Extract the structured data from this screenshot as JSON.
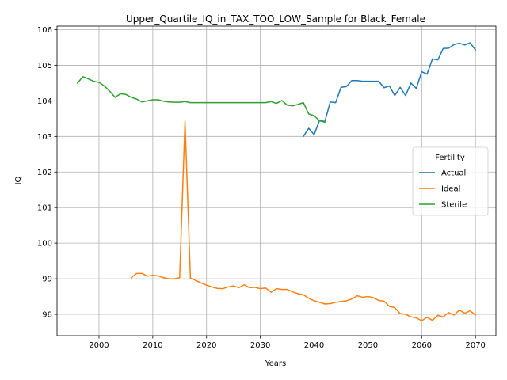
{
  "chart_data": {
    "type": "line",
    "title": "Upper_Quartile_IQ_in_TAX_TOO_LOW_Sample for Black_Female",
    "xlabel": "Years",
    "ylabel": "IQ",
    "xlim": [
      1992.2,
      2073.8
    ],
    "ylim": [
      97.4,
      106.1
    ],
    "xticks": [
      2000,
      2010,
      2020,
      2030,
      2040,
      2050,
      2060,
      2070
    ],
    "yticks": [
      98,
      99,
      100,
      101,
      102,
      103,
      104,
      105,
      106
    ],
    "grid": true,
    "legend": {
      "title": "Fertility",
      "placement": "center-right"
    },
    "series": [
      {
        "name": "Actual",
        "color": "#1f77b4",
        "x": [
          2038,
          2039,
          2040,
          2041,
          2042,
          2043,
          2044,
          2045,
          2046,
          2047,
          2048,
          2049,
          2050,
          2051,
          2052,
          2053,
          2054,
          2055,
          2056,
          2057,
          2058,
          2059,
          2060,
          2061,
          2062,
          2063,
          2064,
          2065,
          2066,
          2067,
          2068,
          2069,
          2070
        ],
        "y": [
          103.0,
          103.23,
          103.05,
          103.45,
          103.42,
          103.97,
          103.95,
          104.38,
          104.4,
          104.57,
          104.57,
          104.55,
          104.55,
          104.55,
          104.55,
          104.37,
          104.42,
          104.15,
          104.38,
          104.15,
          104.5,
          104.35,
          104.82,
          104.75,
          105.18,
          105.15,
          105.47,
          105.48,
          105.58,
          105.62,
          105.57,
          105.63,
          105.43
        ]
      },
      {
        "name": "Ideal",
        "color": "#ff7f0e",
        "x": [
          2006,
          2007,
          2008,
          2009,
          2010,
          2011,
          2012,
          2013,
          2014,
          2015,
          2016,
          2017,
          2018,
          2019,
          2020,
          2021,
          2022,
          2023,
          2024,
          2025,
          2026,
          2027,
          2028,
          2029,
          2030,
          2031,
          2032,
          2033,
          2034,
          2035,
          2036,
          2037,
          2038,
          2039,
          2040,
          2041,
          2042,
          2043,
          2044,
          2045,
          2046,
          2047,
          2048,
          2049,
          2050,
          2051,
          2052,
          2053,
          2054,
          2055,
          2056,
          2057,
          2058,
          2059,
          2060,
          2061,
          2062,
          2063,
          2064,
          2065,
          2066,
          2067,
          2068,
          2069,
          2070
        ],
        "y": [
          99.03,
          99.15,
          99.15,
          99.07,
          99.1,
          99.08,
          99.03,
          99.0,
          99.0,
          99.03,
          103.43,
          99.02,
          98.95,
          98.88,
          98.82,
          98.77,
          98.73,
          98.72,
          98.77,
          98.8,
          98.75,
          98.83,
          98.75,
          98.76,
          98.72,
          98.74,
          98.62,
          98.72,
          98.7,
          98.7,
          98.63,
          98.58,
          98.55,
          98.45,
          98.38,
          98.34,
          98.29,
          98.3,
          98.34,
          98.36,
          98.38,
          98.43,
          98.52,
          98.48,
          98.5,
          98.47,
          98.39,
          98.37,
          98.22,
          98.19,
          98.02,
          98.0,
          97.93,
          97.9,
          97.82,
          97.92,
          97.83,
          97.97,
          97.93,
          98.05,
          97.98,
          98.12,
          98.03,
          98.1,
          97.98
        ]
      },
      {
        "name": "Sterile",
        "color": "#2ca02c",
        "x": [
          1996,
          1997,
          1998,
          1999,
          2000,
          2001,
          2002,
          2003,
          2004,
          2005,
          2006,
          2007,
          2008,
          2009,
          2010,
          2011,
          2012,
          2013,
          2014,
          2015,
          2016,
          2017,
          2018,
          2019,
          2020,
          2021,
          2022,
          2023,
          2024,
          2025,
          2026,
          2027,
          2028,
          2029,
          2030,
          2031,
          2032,
          2033,
          2034,
          2035,
          2036,
          2037,
          2038,
          2039,
          2040,
          2041,
          2042
        ],
        "y": [
          104.5,
          104.68,
          104.62,
          104.55,
          104.52,
          104.42,
          104.27,
          104.1,
          104.2,
          104.18,
          104.1,
          104.05,
          103.97,
          104.0,
          104.03,
          104.03,
          103.99,
          103.97,
          103.96,
          103.96,
          103.98,
          103.95,
          103.95,
          103.95,
          103.95,
          103.95,
          103.95,
          103.95,
          103.95,
          103.95,
          103.95,
          103.95,
          103.95,
          103.95,
          103.95,
          103.95,
          103.98,
          103.93,
          104.01,
          103.88,
          103.86,
          103.9,
          103.95,
          103.63,
          103.58,
          103.44,
          103.4
        ]
      }
    ]
  }
}
